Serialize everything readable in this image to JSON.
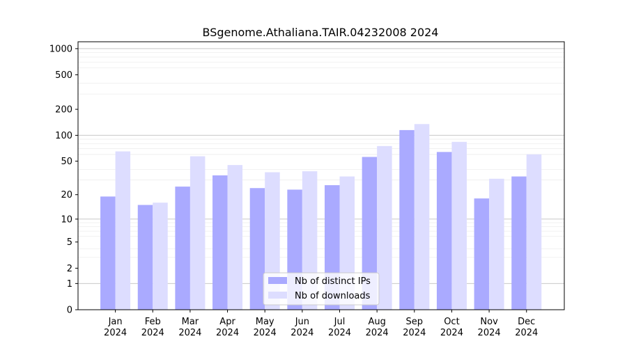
{
  "chart_data": {
    "type": "bar",
    "title": "BSgenome.Athaliana.TAIR.04232008 2024",
    "yscale": "log1p",
    "ylim": [
      0,
      1200
    ],
    "yticks": [
      0,
      1,
      2,
      5,
      10,
      20,
      50,
      100,
      200,
      500,
      1000
    ],
    "ytick_labels": [
      "0",
      "1",
      "2",
      "5",
      "10",
      "20",
      "50",
      "100",
      "200",
      "500",
      "1000"
    ],
    "categories": [
      "Jan\n2024",
      "Feb\n2024",
      "Mar\n2024",
      "Apr\n2024",
      "May\n2024",
      "Jun\n2024",
      "Jul\n2024",
      "Aug\n2024",
      "Sep\n2024",
      "Oct\n2024",
      "Nov\n2024",
      "Dec\n2024"
    ],
    "series": [
      {
        "name": "Nb of distinct IPs",
        "color": "#aaaaff",
        "values": [
          19,
          15,
          25,
          34,
          24,
          23,
          26,
          56,
          115,
          64,
          18,
          33
        ]
      },
      {
        "name": "Nb of downloads",
        "color": "#ddddff",
        "values": [
          65,
          16,
          57,
          45,
          37,
          38,
          33,
          75,
          135,
          84,
          31,
          60
        ]
      }
    ],
    "legend_position": "bottom-center",
    "grid": "horizontal"
  }
}
